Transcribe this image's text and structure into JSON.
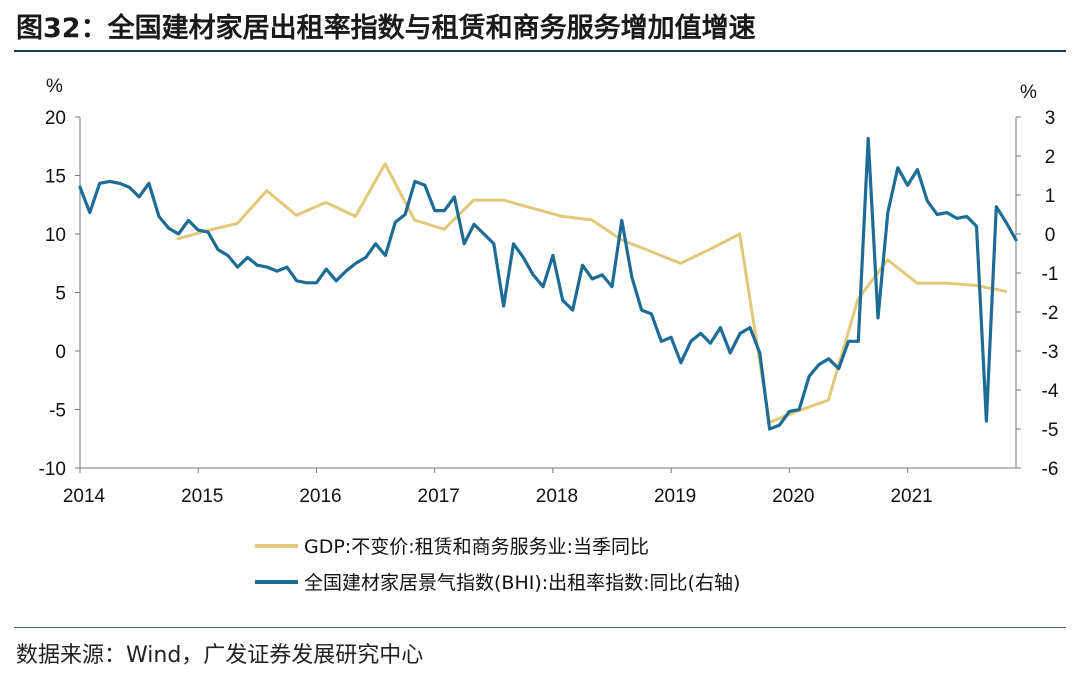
{
  "title": "图32：全国建材家居出租率指数与租赁和商务服务增加值增速",
  "source": "数据来源：Wind，广发证券发展研究中心",
  "colors": {
    "gdp": "#e2c878",
    "bhi": "#1d6c96",
    "axis": "#7a7a7a",
    "rule": "#1f3b5a"
  },
  "chart_data": {
    "type": "line",
    "left_axis": {
      "unit": "%",
      "ylim": [
        -10,
        20
      ],
      "ticks": [
        "-10",
        "-5",
        "0",
        "5",
        "10",
        "15",
        "20"
      ]
    },
    "right_axis": {
      "unit": "%",
      "ylim": [
        -6,
        3
      ],
      "ticks": [
        "-6",
        "-5",
        "-4",
        "-3",
        "-2",
        "-1",
        "0",
        "1",
        "2",
        "3"
      ]
    },
    "x_axis": {
      "range": [
        2014.0,
        2021.917
      ],
      "ticks": [
        "2014",
        "2015",
        "2016",
        "2017",
        "2018",
        "2019",
        "2020",
        "2021"
      ]
    },
    "series": [
      {
        "name": "GDP:不变价:租赁和商务服务业:当季同比",
        "axis": "left",
        "color": "#e2c878",
        "x": [
          2014.83,
          2015.08,
          2015.33,
          2015.58,
          2015.83,
          2016.08,
          2016.33,
          2016.58,
          2016.83,
          2017.08,
          2017.33,
          2017.58,
          2017.83,
          2018.08,
          2018.33,
          2018.58,
          2018.83,
          2019.08,
          2019.33,
          2019.58,
          2019.83,
          2020.08,
          2020.33,
          2020.58,
          2020.83,
          2021.08,
          2021.33,
          2021.58,
          2021.83
        ],
        "y": [
          9.6,
          10.3,
          10.9,
          13.7,
          11.6,
          12.7,
          11.5,
          16.0,
          11.2,
          10.4,
          12.9,
          12.9,
          12.2,
          11.5,
          11.2,
          9.5,
          8.5,
          7.5,
          8.7,
          10.0,
          -6.1,
          -5.1,
          -4.2,
          4.4,
          7.8,
          5.8,
          5.8,
          5.6,
          5.1
        ]
      },
      {
        "name": "全国建材家居景气指数(BHI):出租率指数:同比(右轴)",
        "axis": "right",
        "color": "#1d6c96",
        "x": [
          2014.0,
          2014.083,
          2014.167,
          2014.25,
          2014.333,
          2014.417,
          2014.5,
          2014.583,
          2014.667,
          2014.75,
          2014.833,
          2014.917,
          2015.0,
          2015.083,
          2015.167,
          2015.25,
          2015.333,
          2015.417,
          2015.5,
          2015.583,
          2015.667,
          2015.75,
          2015.833,
          2015.917,
          2016.0,
          2016.083,
          2016.167,
          2016.25,
          2016.333,
          2016.417,
          2016.5,
          2016.583,
          2016.667,
          2016.75,
          2016.833,
          2016.917,
          2017.0,
          2017.083,
          2017.167,
          2017.25,
          2017.333,
          2017.417,
          2017.5,
          2017.583,
          2017.667,
          2017.75,
          2017.833,
          2017.917,
          2018.0,
          2018.083,
          2018.167,
          2018.25,
          2018.333,
          2018.417,
          2018.5,
          2018.583,
          2018.667,
          2018.75,
          2018.833,
          2018.917,
          2019.0,
          2019.083,
          2019.167,
          2019.25,
          2019.333,
          2019.417,
          2019.5,
          2019.583,
          2019.667,
          2019.75,
          2019.833,
          2019.917,
          2020.0,
          2020.083,
          2020.167,
          2020.25,
          2020.333,
          2020.417,
          2020.5,
          2020.583,
          2020.667,
          2020.75,
          2020.833,
          2020.917,
          2021.0,
          2021.083,
          2021.167,
          2021.25,
          2021.333,
          2021.417,
          2021.5,
          2021.583,
          2021.667,
          2021.75,
          2021.833,
          2021.917
        ],
        "y": [
          1.2,
          0.55,
          1.3,
          1.35,
          1.3,
          1.2,
          0.95,
          1.3,
          0.45,
          0.15,
          0.0,
          0.35,
          0.1,
          0.05,
          -0.4,
          -0.55,
          -0.85,
          -0.6,
          -0.8,
          -0.85,
          -0.95,
          -0.85,
          -1.2,
          -1.25,
          -1.25,
          -0.9,
          -1.2,
          -0.95,
          -0.75,
          -0.6,
          -0.25,
          -0.55,
          0.3,
          0.5,
          1.35,
          1.25,
          0.6,
          0.6,
          0.95,
          -0.25,
          0.25,
          0.0,
          -0.25,
          -1.85,
          -0.25,
          -0.6,
          -1.05,
          -1.35,
          -0.55,
          -1.7,
          -1.95,
          -0.8,
          -1.15,
          -1.05,
          -1.35,
          0.35,
          -1.1,
          -1.95,
          -2.05,
          -2.75,
          -2.65,
          -3.3,
          -2.75,
          -2.55,
          -2.8,
          -2.4,
          -3.05,
          -2.55,
          -2.4,
          -3.05,
          -5.0,
          -4.9,
          -4.55,
          -4.5,
          -3.65,
          -3.35,
          -3.2,
          -3.45,
          -2.75,
          -2.75,
          2.45,
          -2.15,
          0.55,
          1.7,
          1.25,
          1.65,
          0.85,
          0.5,
          0.55,
          0.4,
          0.45,
          0.2,
          -4.8,
          0.7,
          0.3,
          -0.15
        ]
      }
    ]
  },
  "legend": {
    "gdp": "GDP:不变价:租赁和商务服务业:当季同比",
    "bhi": "全国建材家居景气指数(BHI):出租率指数:同比(右轴)"
  }
}
